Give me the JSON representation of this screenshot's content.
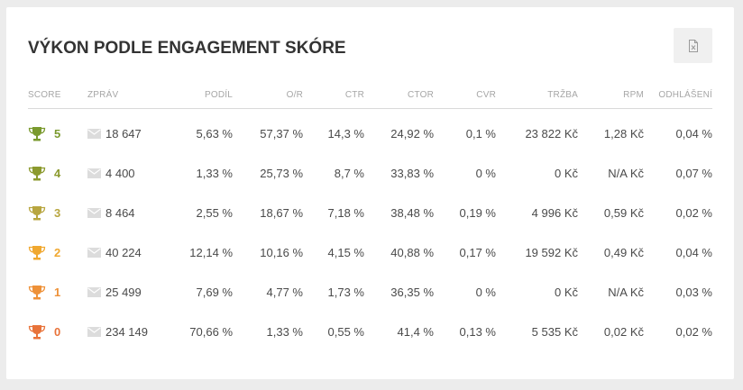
{
  "widget": {
    "title": "VÝKON PODLE ENGAGEMENT SKÓRE",
    "export_icon": "excel-file-icon"
  },
  "columns": [
    "SCORE",
    "ZPRÁV",
    "PODÍL",
    "O/R",
    "CTR",
    "CTOR",
    "CVR",
    "TRŽBA",
    "RPM",
    "ODHLÁŠENÍ"
  ],
  "score_colors": {
    "5": "#7a9a2e",
    "4": "#8c9a2e",
    "3": "#b8a640",
    "2": "#f0a830",
    "1": "#ee9138",
    "0": "#e8733a"
  },
  "rows": [
    {
      "score": "5",
      "messages": "18 647",
      "share": "5,63 %",
      "or": "57,37 %",
      "ctr": "14,3 %",
      "ctor": "24,92 %",
      "cvr": "0,1 %",
      "revenue": "23 822 Kč",
      "rpm": "1,28 Kč",
      "unsub": "0,04 %"
    },
    {
      "score": "4",
      "messages": "4 400",
      "share": "1,33 %",
      "or": "25,73 %",
      "ctr": "8,7 %",
      "ctor": "33,83 %",
      "cvr": "0 %",
      "revenue": "0 Kč",
      "rpm": "N/A Kč",
      "unsub": "0,07 %"
    },
    {
      "score": "3",
      "messages": "8 464",
      "share": "2,55 %",
      "or": "18,67 %",
      "ctr": "7,18 %",
      "ctor": "38,48 %",
      "cvr": "0,19 %",
      "revenue": "4 996 Kč",
      "rpm": "0,59 Kč",
      "unsub": "0,02 %"
    },
    {
      "score": "2",
      "messages": "40 224",
      "share": "12,14 %",
      "or": "10,16 %",
      "ctr": "4,15 %",
      "ctor": "40,88 %",
      "cvr": "0,17 %",
      "revenue": "19 592 Kč",
      "rpm": "0,49 Kč",
      "unsub": "0,04 %"
    },
    {
      "score": "1",
      "messages": "25 499",
      "share": "7,69 %",
      "or": "4,77 %",
      "ctr": "1,73 %",
      "ctor": "36,35 %",
      "cvr": "0 %",
      "revenue": "0 Kč",
      "rpm": "N/A Kč",
      "unsub": "0,03 %"
    },
    {
      "score": "0",
      "messages": "234 149",
      "share": "70,66 %",
      "or": "1,33 %",
      "ctr": "0,55 %",
      "ctor": "41,4 %",
      "cvr": "0,13 %",
      "revenue": "5 535 Kč",
      "rpm": "0,02 Kč",
      "unsub": "0,02 %"
    }
  ]
}
